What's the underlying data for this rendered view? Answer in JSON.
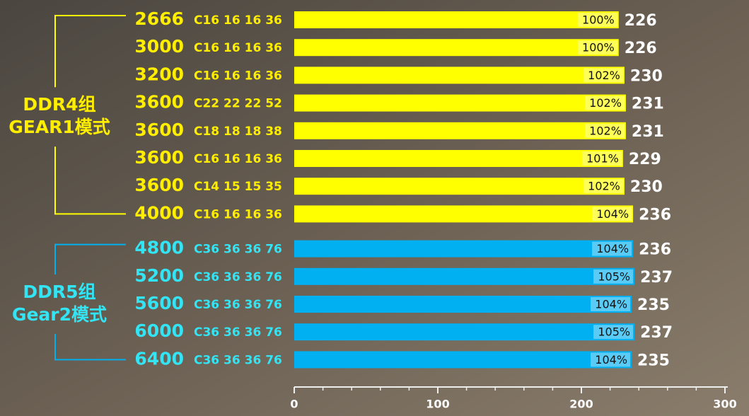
{
  "chart_data": {
    "type": "hbar-grouped",
    "xlim": [
      0,
      300
    ],
    "xticks": [
      0,
      100,
      200,
      300
    ],
    "xminor_ticks": [
      20,
      40,
      60,
      80,
      120,
      140,
      160,
      180,
      220,
      240,
      260,
      280
    ],
    "groups": [
      {
        "label_lines": [
          "DDR4组",
          "GEAR1模式"
        ],
        "color": "#ffff00",
        "text_color": "#ffee00",
        "categories": [
          "2666",
          "3000",
          "3200",
          "3600",
          "3600",
          "3600",
          "3600",
          "4000"
        ],
        "timings": [
          "C16 16 16 36",
          "C16 16 16 36",
          "C16 16 16 36",
          "C22 22 22 52",
          "C18 18 18 38",
          "C16 16 16 36",
          "C14 15 15 35",
          "C16 16 16 36"
        ],
        "values": [
          226,
          226,
          230,
          231,
          231,
          229,
          230,
          236
        ],
        "percent_labels": [
          "100%",
          "100%",
          "102%",
          "102%",
          "102%",
          "101%",
          "102%",
          "104%"
        ]
      },
      {
        "label_lines": [
          "DDR5组",
          "Gear2模式"
        ],
        "color": "#00b0f0",
        "text_color": "#33e4f4",
        "categories": [
          "4800",
          "5200",
          "5600",
          "6000",
          "6400"
        ],
        "timings": [
          "C36 36 36 76",
          "C36 36 36 76",
          "C36 36 36 76",
          "C36 36 36 76",
          "C36 36 36 76"
        ],
        "values": [
          236,
          237,
          235,
          237,
          235
        ],
        "percent_labels": [
          "104%",
          "105%",
          "104%",
          "105%",
          "104%"
        ]
      }
    ]
  }
}
